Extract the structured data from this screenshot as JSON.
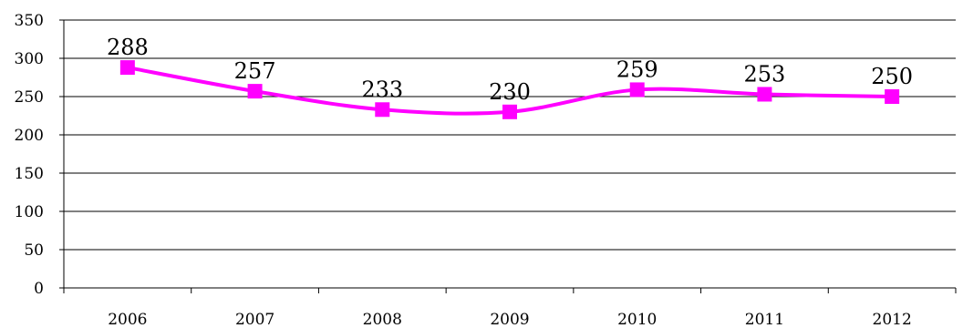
{
  "chart_data": {
    "type": "line",
    "title": "",
    "xlabel": "",
    "ylabel": "",
    "categories": [
      "2006",
      "2007",
      "2008",
      "2009",
      "2010",
      "2011",
      "2012"
    ],
    "series": [
      {
        "values": [
          288,
          257,
          233,
          230,
          259,
          253,
          250
        ],
        "data_labels": [
          "288",
          "257",
          "233",
          "230",
          "259",
          "253",
          "250"
        ],
        "color": "#ff00ff",
        "marker": "square",
        "smooth": true
      }
    ],
    "ylim": [
      0,
      350
    ],
    "yticks": [
      0,
      50,
      100,
      150,
      200,
      250,
      300,
      350
    ],
    "ytick_labels": [
      "0",
      "50",
      "100",
      "150",
      "200",
      "250",
      "300",
      "350"
    ],
    "grid": true,
    "legend": "none"
  }
}
